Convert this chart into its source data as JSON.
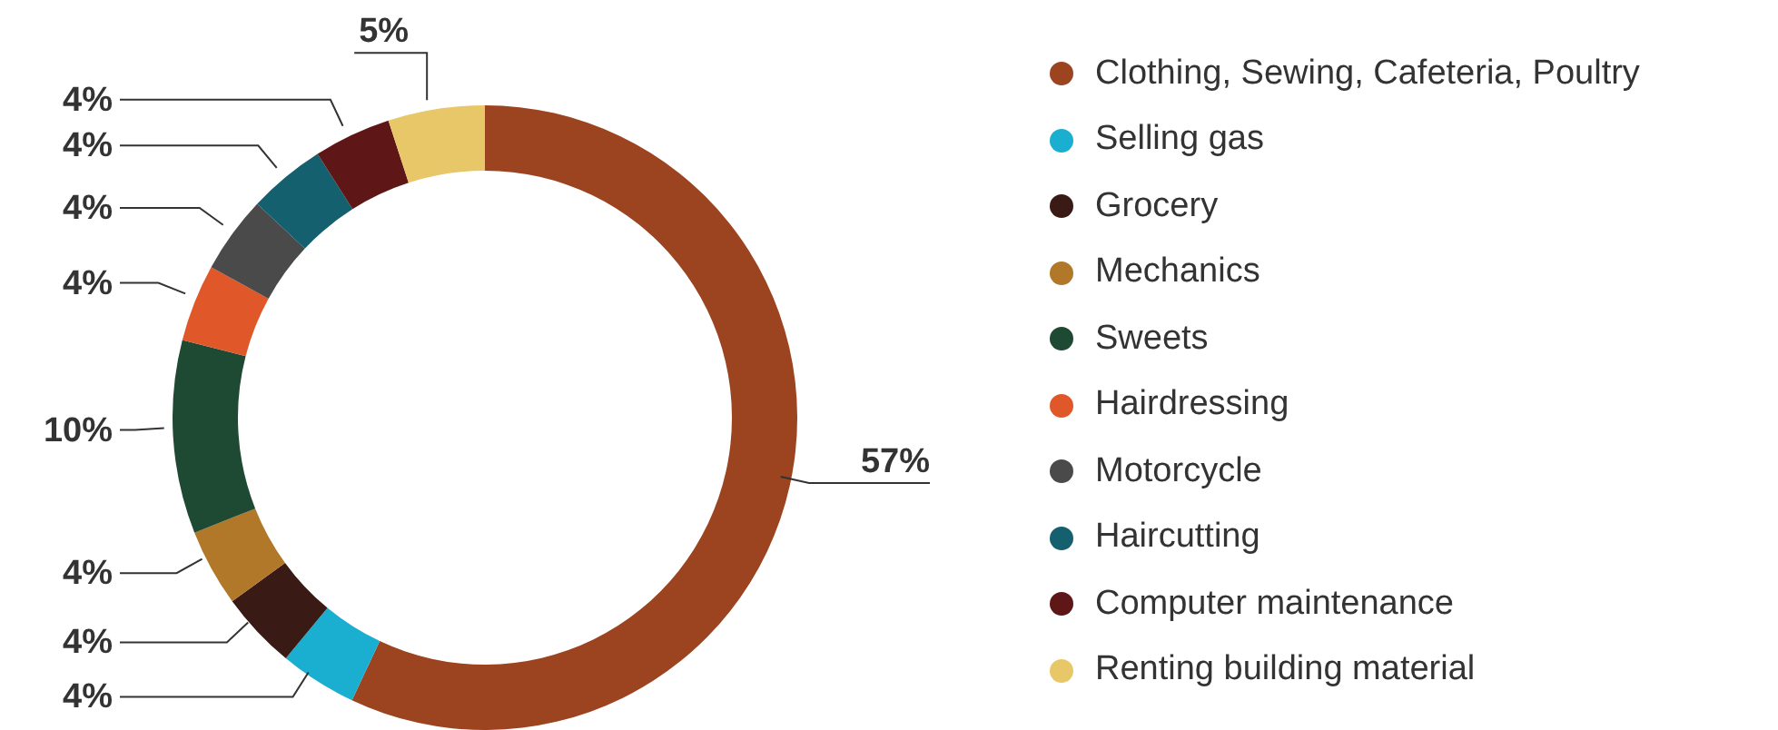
{
  "chart_data": {
    "type": "donut",
    "categories": [
      "Clothing, Sewing, Cafeteria, Poultry",
      "Selling gas",
      "Grocery",
      "Mechanics",
      "Sweets",
      "Hairdressing",
      "Motorcycle",
      "Haircutting",
      "Computer maintenance",
      "Renting building material"
    ],
    "values": [
      57,
      4,
      4,
      4,
      10,
      4,
      4,
      4,
      4,
      5
    ],
    "value_labels": [
      "57%",
      "4%",
      "4%",
      "4%",
      "10%",
      "4%",
      "4%",
      "4%",
      "4%",
      "5%"
    ],
    "colors": [
      "#9c4320",
      "#1aaed0",
      "#3a1a14",
      "#b07828",
      "#1e4a34",
      "#e0582a",
      "#4a4a4a",
      "#15606f",
      "#5e1616",
      "#e8c768"
    ],
    "legend": "right"
  }
}
